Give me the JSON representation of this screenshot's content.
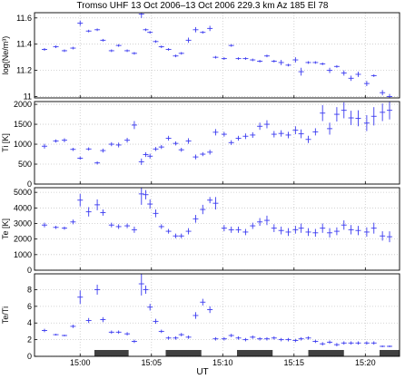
{
  "title": "Tromso UHF 13 Oct 2006–13 Oct 2006 229.3 km Az 185 El 78",
  "colors": {
    "series": "#3a3af0",
    "bars": "#404040",
    "grid": "#c8c8c8",
    "axis": "#000000"
  },
  "chart_data": {
    "type": "scatter",
    "grid": true,
    "xlabel": "UT",
    "x_ticks": [
      "15:00",
      "15:05",
      "15:10",
      "15:15",
      "15:20"
    ],
    "x_tick_minutes": [
      0,
      5,
      10,
      15,
      20
    ],
    "xlim": [
      -3.2,
      22.4
    ],
    "x_minutes": [
      -2.5,
      -1.7,
      -1.1,
      -0.5,
      0.0,
      0.6,
      1.2,
      1.6,
      2.2,
      2.7,
      3.3,
      3.8,
      4.3,
      4.6,
      4.9,
      5.3,
      5.7,
      6.2,
      6.7,
      7.1,
      7.6,
      8.1,
      8.6,
      9.1,
      9.5,
      10.1,
      10.6,
      11.1,
      11.6,
      12.1,
      12.6,
      13.1,
      13.6,
      14.1,
      14.6,
      15.1,
      15.5,
      16.0,
      16.5,
      17.0,
      17.5,
      18.0,
      18.5,
      19.0,
      19.5,
      20.1,
      20.6,
      21.2,
      21.7
    ],
    "panels": [
      {
        "ylabel": "log(Ne/m³)",
        "yticks": [
          "11",
          "11.2",
          "11.4",
          "11.6"
        ],
        "ytick_values": [
          11.0,
          11.2,
          11.4,
          11.6
        ],
        "ylim": [
          10.99,
          11.64
        ],
        "values": [
          11.36,
          11.38,
          11.35,
          11.37,
          11.56,
          11.5,
          11.51,
          11.43,
          11.35,
          11.39,
          11.35,
          11.33,
          11.63,
          11.51,
          11.49,
          11.42,
          11.38,
          11.36,
          11.31,
          11.33,
          11.43,
          11.51,
          11.49,
          11.52,
          11.3,
          11.29,
          11.39,
          11.29,
          11.29,
          11.28,
          11.27,
          11.31,
          11.27,
          11.26,
          11.24,
          11.28,
          11.19,
          11.26,
          11.26,
          11.25,
          11.2,
          11.23,
          11.18,
          11.14,
          11.17,
          11.1,
          11.16,
          11.03,
          11.0
        ],
        "errors": [
          0.01,
          0.01,
          0.01,
          0.01,
          0.02,
          0.01,
          0.01,
          0.01,
          0.01,
          0.01,
          0.01,
          0.01,
          0.03,
          0.01,
          0.01,
          0.01,
          0.01,
          0.01,
          0.01,
          0.01,
          0.02,
          0.02,
          0.01,
          0.02,
          0.01,
          0.01,
          0.01,
          0.01,
          0.01,
          0.01,
          0.01,
          0.01,
          0.01,
          0.02,
          0.01,
          0.02,
          0.03,
          0.01,
          0.01,
          0.01,
          0.02,
          0.01,
          0.02,
          0.02,
          0.02,
          0.02,
          0.01,
          0.02,
          0.02
        ]
      },
      {
        "ylabel": "Ti [K]",
        "yticks": [
          "0",
          "500",
          "1000",
          "1500",
          "2000"
        ],
        "ytick_values": [
          0,
          500,
          1000,
          1500,
          2000
        ],
        "ylim": [
          0,
          2070
        ],
        "values": [
          950,
          1080,
          1100,
          870,
          650,
          880,
          530,
          840,
          1000,
          980,
          1100,
          1480,
          560,
          740,
          700,
          880,
          930,
          1150,
          1020,
          860,
          1080,
          680,
          750,
          800,
          1300,
          1250,
          1040,
          1150,
          1200,
          1230,
          1450,
          1500,
          1250,
          1270,
          1230,
          1350,
          1260,
          1120,
          1310,
          1780,
          1390,
          1750,
          1850,
          1660,
          1650,
          1530,
          1700,
          1800,
          1850
        ],
        "errors": [
          60,
          40,
          50,
          40,
          40,
          40,
          40,
          50,
          50,
          60,
          60,
          100,
          80,
          60,
          60,
          50,
          50,
          60,
          50,
          50,
          70,
          60,
          50,
          60,
          80,
          60,
          60,
          60,
          70,
          70,
          90,
          100,
          80,
          80,
          80,
          100,
          110,
          90,
          90,
          200,
          150,
          180,
          200,
          180,
          200,
          200,
          230,
          220,
          230
        ]
      },
      {
        "ylabel": "Te [K]",
        "yticks": [
          "0",
          "1000",
          "2000",
          "3000",
          "4000",
          "5000"
        ],
        "ytick_values": [
          0,
          1000,
          2000,
          3000,
          4000,
          5000
        ],
        "ylim": [
          0,
          5300
        ],
        "values": [
          2900,
          2750,
          2700,
          3100,
          4500,
          3750,
          4200,
          3700,
          2900,
          2800,
          2850,
          2600,
          4900,
          4850,
          4250,
          3650,
          2800,
          2500,
          2200,
          2200,
          2500,
          3300,
          3900,
          4500,
          4300,
          2700,
          2600,
          2600,
          2450,
          2850,
          3100,
          3200,
          2700,
          2550,
          2450,
          2600,
          2700,
          2450,
          2400,
          2700,
          2400,
          2500,
          2900,
          2600,
          2550,
          2450,
          2700,
          2200,
          2150
        ],
        "errors": [
          150,
          100,
          100,
          150,
          400,
          300,
          350,
          200,
          150,
          150,
          150,
          200,
          700,
          300,
          300,
          250,
          150,
          150,
          150,
          150,
          200,
          250,
          300,
          200,
          400,
          200,
          200,
          200,
          200,
          200,
          250,
          300,
          250,
          250,
          250,
          250,
          300,
          250,
          250,
          300,
          300,
          250,
          300,
          300,
          300,
          300,
          350,
          300,
          350
        ]
      },
      {
        "ylabel": "Te/Ti",
        "yticks": [
          "0",
          "2",
          "4",
          "6",
          "8"
        ],
        "ytick_values": [
          0,
          2,
          4,
          6,
          8
        ],
        "ylim": [
          0,
          9.9
        ],
        "values": [
          3.1,
          2.6,
          2.5,
          3.6,
          7.1,
          4.3,
          8.0,
          4.4,
          2.9,
          2.9,
          2.7,
          1.8,
          8.7,
          8.0,
          5.9,
          4.2,
          3.0,
          2.2,
          2.2,
          2.6,
          2.3,
          4.9,
          6.5,
          5.6,
          2.1,
          2.1,
          2.5,
          2.2,
          2.0,
          2.3,
          2.1,
          2.1,
          2.2,
          2.0,
          2.0,
          1.9,
          2.1,
          2.2,
          1.8,
          1.5,
          1.7,
          1.4,
          1.6,
          1.6,
          1.6,
          1.6,
          1.6,
          1.2,
          1.2
        ],
        "errors": [
          0.2,
          0.1,
          0.1,
          0.2,
          0.8,
          0.3,
          0.6,
          0.3,
          0.2,
          0.2,
          0.2,
          0.2,
          1.4,
          0.5,
          0.4,
          0.3,
          0.2,
          0.2,
          0.2,
          0.2,
          0.2,
          0.4,
          0.4,
          0.4,
          0.2,
          0.2,
          0.2,
          0.2,
          0.2,
          0.2,
          0.2,
          0.2,
          0.2,
          0.2,
          0.2,
          0.2,
          0.2,
          0.2,
          0.2,
          0.2,
          0.2,
          0.2,
          0.2,
          0.2,
          0.2,
          0.2,
          0.2,
          0.1,
          0.1
        ],
        "bars": [
          [
            1.0,
            3.4
          ],
          [
            6.0,
            8.5
          ],
          [
            11.0,
            13.5
          ],
          [
            16.0,
            18.5
          ],
          [
            21.0,
            23.0
          ]
        ]
      }
    ]
  }
}
